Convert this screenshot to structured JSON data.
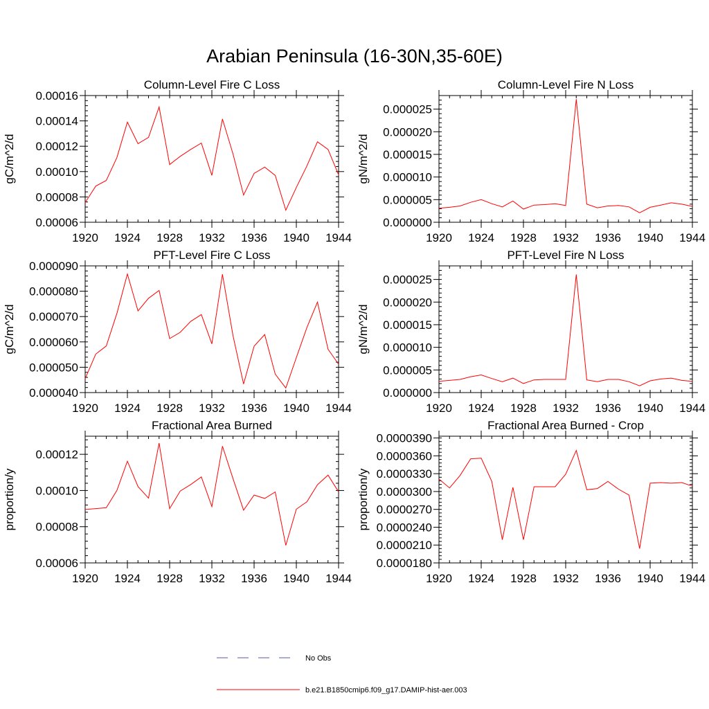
{
  "figure": {
    "title": "Arabian Peninsula (16-30N,35-60E)",
    "legend": [
      {
        "label": "No Obs",
        "color": "#5a5aa0",
        "dashed": true
      },
      {
        "label": "b.e21.B1850cmip6.f09_g17.DAMIP-hist-aer.003",
        "color": "#ff0000",
        "dashed": false
      }
    ]
  },
  "chart_data": [
    {
      "type": "line",
      "title": "Column-Level Fire C Loss",
      "ylabel": "gC/m^2/d",
      "xlim": [
        1920,
        1944
      ],
      "ylim": [
        6e-05,
        0.00016
      ],
      "xticks": [
        "1920",
        "1924",
        "1928",
        "1932",
        "1936",
        "1940",
        "1944"
      ],
      "yticks": [
        "0.00006",
        "0.00008",
        "0.00010",
        "0.00012",
        "0.00014",
        "0.00016"
      ],
      "x": [
        1920,
        1921,
        1922,
        1923,
        1924,
        1925,
        1926,
        1927,
        1928,
        1929,
        1930,
        1931,
        1932,
        1933,
        1934,
        1935,
        1936,
        1937,
        1938,
        1939,
        1940,
        1941,
        1942,
        1943,
        1944
      ],
      "series": [
        {
          "color": "#ff0000",
          "values": [
            7.55e-05,
            8.85e-05,
            9.3e-05,
            0.000111,
            0.000139,
            0.000122,
            0.000127,
            0.000151,
            0.0001055,
            0.000112,
            0.0001175,
            0.0001225,
            9.7e-05,
            0.0001415,
            0.000114,
            8.15e-05,
            9.85e-05,
            0.0001035,
            9.7e-05,
            6.95e-05,
            8.75e-05,
            0.0001045,
            0.0001235,
            0.0001175,
            9.75e-05
          ]
        }
      ]
    },
    {
      "type": "line",
      "title": "Column-Level Fire N Loss",
      "ylabel": "gN/m^2/d",
      "xlim": [
        1920,
        1944
      ],
      "ylim": [
        0,
        2.8e-05
      ],
      "xticks": [
        "1920",
        "1924",
        "1928",
        "1932",
        "1936",
        "1940",
        "1944"
      ],
      "yticks": [
        "0.000000",
        "0.000005",
        "0.000010",
        "0.000015",
        "0.000020",
        "0.000025"
      ],
      "x": [
        1920,
        1921,
        1922,
        1923,
        1924,
        1925,
        1926,
        1927,
        1928,
        1929,
        1930,
        1931,
        1932,
        1933,
        1934,
        1935,
        1936,
        1937,
        1938,
        1939,
        1940,
        1941,
        1942,
        1943,
        1944
      ],
      "series": [
        {
          "color": "#ff0000",
          "values": [
            3.1e-06,
            3.3e-06,
            3.6e-06,
            4.4e-06,
            5e-06,
            4.1e-06,
            3.4e-06,
            4.7e-06,
            2.9e-06,
            3.8e-06,
            3.9e-06,
            4.1e-06,
            3.7e-06,
            2.72e-05,
            4e-06,
            3.2e-06,
            3.6e-06,
            3.7e-06,
            3.4e-06,
            2.1e-06,
            3.3e-06,
            3.8e-06,
            4.3e-06,
            4e-06,
            3.5e-06
          ]
        }
      ]
    },
    {
      "type": "line",
      "title": "PFT-Level Fire C Loss",
      "ylabel": "gC/m^2/d",
      "xlim": [
        1920,
        1944
      ],
      "ylim": [
        4e-05,
        9e-05
      ],
      "xticks": [
        "1920",
        "1924",
        "1928",
        "1932",
        "1936",
        "1940",
        "1944"
      ],
      "yticks": [
        "0.000040",
        "0.000050",
        "0.000060",
        "0.000070",
        "0.000080",
        "0.000090"
      ],
      "x": [
        1920,
        1921,
        1922,
        1923,
        1924,
        1925,
        1926,
        1927,
        1928,
        1929,
        1930,
        1931,
        1932,
        1933,
        1934,
        1935,
        1936,
        1937,
        1938,
        1939,
        1940,
        1941,
        1942,
        1943,
        1944
      ],
      "series": [
        {
          "color": "#ff0000",
          "values": [
            4.55e-05,
            5.52e-05,
            5.84e-05,
            7.12e-05,
            8.68e-05,
            7.22e-05,
            7.72e-05,
            8.03e-05,
            6.13e-05,
            6.38e-05,
            6.81e-05,
            7.08e-05,
            5.92e-05,
            8.67e-05,
            6.25e-05,
            4.34e-05,
            5.83e-05,
            6.29e-05,
            4.73e-05,
            4.18e-05,
            5.38e-05,
            6.57e-05,
            7.57e-05,
            5.71e-05,
            5.12e-05
          ]
        }
      ]
    },
    {
      "type": "line",
      "title": "PFT-Level Fire N Loss",
      "ylabel": "gN/m^2/d",
      "xlim": [
        1920,
        1944
      ],
      "ylim": [
        0,
        2.8e-05
      ],
      "xticks": [
        "1920",
        "1924",
        "1928",
        "1932",
        "1936",
        "1940",
        "1944"
      ],
      "yticks": [
        "0.000000",
        "0.000005",
        "0.000010",
        "0.000015",
        "0.000020",
        "0.000025"
      ],
      "x": [
        1920,
        1921,
        1922,
        1923,
        1924,
        1925,
        1926,
        1927,
        1928,
        1929,
        1930,
        1931,
        1932,
        1933,
        1934,
        1935,
        1936,
        1937,
        1938,
        1939,
        1940,
        1941,
        1942,
        1943,
        1944
      ],
      "series": [
        {
          "color": "#ff0000",
          "values": [
            2.5e-06,
            2.7e-06,
            2.9e-06,
            3.5e-06,
            3.9e-06,
            3.1e-06,
            2.4e-06,
            3.2e-06,
            2e-06,
            2.8e-06,
            2.9e-06,
            2.9e-06,
            2.9e-06,
            2.61e-05,
            2.8e-06,
            2.4e-06,
            2.9e-06,
            2.9e-06,
            2.4e-06,
            1.5e-06,
            2.6e-06,
            3e-06,
            3.2e-06,
            2.7e-06,
            2.5e-06
          ]
        }
      ]
    },
    {
      "type": "line",
      "title": "Fractional Area Burned",
      "ylabel": "proportion/y",
      "xlim": [
        1920,
        1944
      ],
      "ylim": [
        6e-05,
        0.00013
      ],
      "xticks": [
        "1920",
        "1924",
        "1928",
        "1932",
        "1936",
        "1940",
        "1944"
      ],
      "yticks": [
        "0.00006",
        "0.00008",
        "0.00010",
        "0.00012"
      ],
      "x": [
        1920,
        1921,
        1922,
        1923,
        1924,
        1925,
        1926,
        1927,
        1928,
        1929,
        1930,
        1931,
        1932,
        1933,
        1934,
        1935,
        1936,
        1937,
        1938,
        1939,
        1940,
        1941,
        1942,
        1943,
        1944
      ],
      "series": [
        {
          "color": "#ff0000",
          "values": [
            8.95e-05,
            9e-05,
            9.05e-05,
            0.0001,
            0.0001162,
            0.0001022,
            9.58e-05,
            0.0001262,
            9e-05,
            9.97e-05,
            0.0001033,
            0.0001075,
            9.11e-05,
            0.0001245,
            0.0001066,
            8.91e-05,
            9.75e-05,
            9.56e-05,
            9.92e-05,
            6.97e-05,
            8.97e-05,
            9.38e-05,
            0.0001032,
            0.0001085,
            9.93e-05
          ]
        }
      ]
    },
    {
      "type": "line",
      "title": "Fractional Area Burned - Crop",
      "ylabel": "proportion/y",
      "xlim": [
        1920,
        1944
      ],
      "ylim": [
        1.8e-05,
        3.93e-05
      ],
      "xticks": [
        "1920",
        "1924",
        "1928",
        "1932",
        "1936",
        "1940",
        "1944"
      ],
      "yticks": [
        "0.0000180",
        "0.0000210",
        "0.0000240",
        "0.0000270",
        "0.0000300",
        "0.0000330",
        "0.0000360",
        "0.0000390"
      ],
      "x": [
        1920,
        1921,
        1922,
        1923,
        1924,
        1925,
        1926,
        1927,
        1928,
        1929,
        1930,
        1931,
        1932,
        1933,
        1934,
        1935,
        1936,
        1937,
        1938,
        1939,
        1940,
        1941,
        1942,
        1943,
        1944
      ],
      "series": [
        {
          "color": "#ff0000",
          "values": [
            3.21e-05,
            3.06e-05,
            3.27e-05,
            3.55e-05,
            3.56e-05,
            3.17e-05,
            2.19e-05,
            3.07e-05,
            2.19e-05,
            3.08e-05,
            3.08e-05,
            3.08e-05,
            3.29e-05,
            3.69e-05,
            3.03e-05,
            3.05e-05,
            3.17e-05,
            3.04e-05,
            2.94e-05,
            2.04e-05,
            3.14e-05,
            3.15e-05,
            3.14e-05,
            3.15e-05,
            3.09e-05
          ]
        }
      ]
    }
  ]
}
